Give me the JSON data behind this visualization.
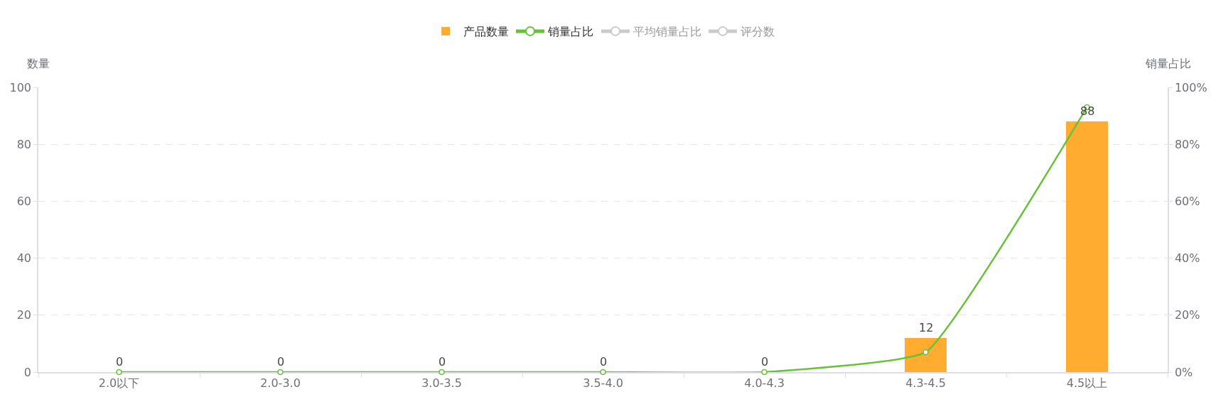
{
  "chart_data": {
    "type": "bar",
    "categories": [
      "2.0以下",
      "2.0-3.0",
      "3.0-3.5",
      "3.5-4.0",
      "4.0-4.3",
      "4.3-4.5",
      "4.5以上"
    ],
    "series": [
      {
        "name": "产品数量",
        "color": "#ffac30",
        "values": [
          0,
          0,
          0,
          0,
          0,
          12,
          88
        ],
        "value_labels": [
          "0",
          "0",
          "0",
          "0",
          "0",
          "12",
          "88"
        ]
      },
      {
        "name": "销量占比",
        "type": "line",
        "axis": "y2",
        "color": "#67c23a",
        "values": [
          0,
          0,
          0,
          0,
          0,
          7,
          93
        ]
      },
      {
        "name": "平均销量占比",
        "type": "line",
        "axis": "y2",
        "color": "#999999",
        "values": [
          null,
          null,
          null,
          null,
          null,
          null,
          null
        ]
      },
      {
        "name": "评分数",
        "type": "line",
        "color": "#999999",
        "values": [
          null,
          null,
          null,
          null,
          null,
          null,
          null
        ]
      }
    ],
    "ylabel": "数量",
    "y2label": "销量占比",
    "ylim": [
      0,
      100
    ],
    "yticks": [
      0,
      20,
      40,
      60,
      80,
      100
    ],
    "y2lim": [
      0,
      100
    ],
    "y2ticks": [
      {
        "value": 0,
        "label": "0%"
      },
      {
        "value": 20,
        "label": "20%"
      },
      {
        "value": 40,
        "label": "40%"
      },
      {
        "value": 60,
        "label": "60%"
      },
      {
        "value": 80,
        "label": "80%"
      },
      {
        "value": 100,
        "label": "100%"
      }
    ],
    "grid": "y",
    "legend": "top",
    "marker": "circle"
  }
}
